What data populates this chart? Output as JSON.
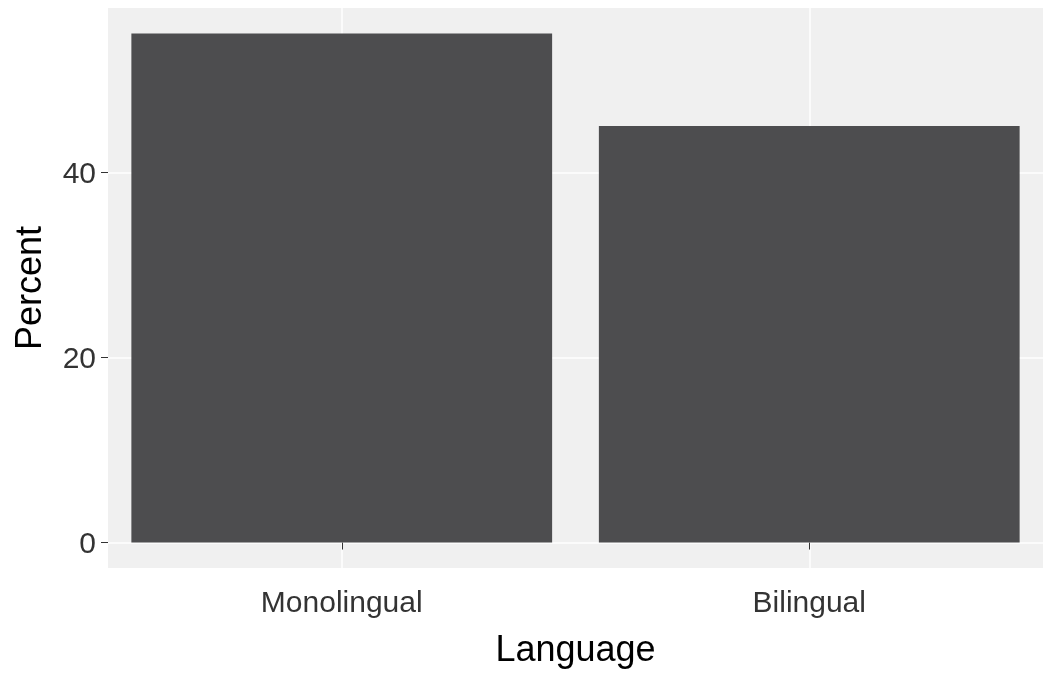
{
  "chart_data": {
    "type": "bar",
    "xlabel": "Language",
    "ylabel": "Percent",
    "categories": [
      "Monolingual",
      "Bilingual"
    ],
    "values": [
      55,
      45
    ],
    "color": "#4d4d4f",
    "ylim": [
      -2.75,
      57.75
    ],
    "yticks": [
      0,
      20,
      40
    ],
    "grid": true
  }
}
